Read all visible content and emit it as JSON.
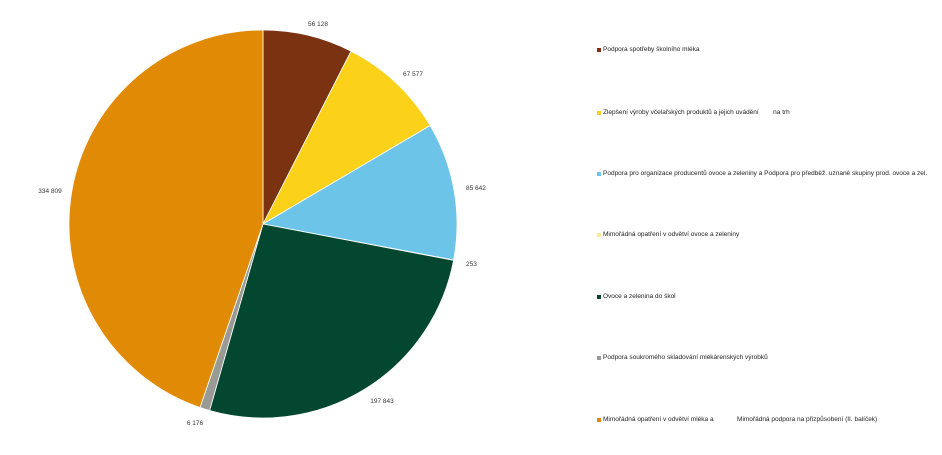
{
  "chart_data": {
    "type": "pie",
    "title": "",
    "legend_position": "right",
    "slices": [
      {
        "label": "Podpora spotřeby školního mléka",
        "value": 56128,
        "value_text": "56 128",
        "color": "#7a3210"
      },
      {
        "label": "Zlepšení výroby včelařských produktů a jejich uvádění        na trh",
        "value": 67577,
        "value_text": "67 577",
        "color": "#fbd11a"
      },
      {
        "label": "Podpora pro organizace producentů ovoce a zeleniny a Podpora pro předběž. uznané skupiny prod. ovoce a zel.",
        "value": 85642,
        "value_text": "85 642",
        "color": "#6cc4e8"
      },
      {
        "label": "Mimořádná opatření v odvětví ovoce a zeleniny",
        "value": 253,
        "value_text": "253",
        "color": "#fde7a1"
      },
      {
        "label": "Ovoce a zelenina do škol",
        "value": 197843,
        "value_text": "197 843",
        "color": "#034730"
      },
      {
        "label": "Podpora soukromého skladování mlékárenských výrobků",
        "value": 6176,
        "value_text": "6 176",
        "color": "#9a9a94"
      },
      {
        "label": "Mimořádná opatření v odvětví mléka a             Mimořádná podpora na přizpůsobení (II. balíček)",
        "value": 334809,
        "value_text": "334 809",
        "color": "#e08a06"
      }
    ]
  }
}
